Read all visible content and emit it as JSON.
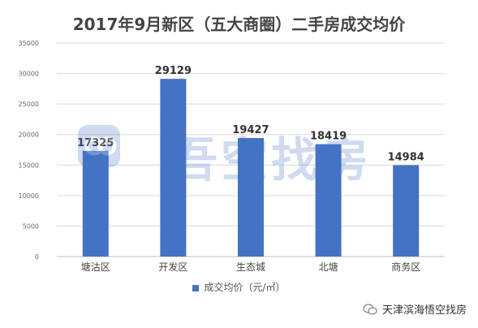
{
  "chart_data": {
    "type": "bar",
    "title": "2017年9月新区（五大商圈）二手房成交均价",
    "categories": [
      "塘沽区",
      "开发区",
      "生态城",
      "北塘",
      "商务区"
    ],
    "series": [
      {
        "name": "成交均价（元/㎡）",
        "values": [
          17325,
          29129,
          19427,
          18419,
          14984
        ]
      }
    ],
    "ylim": [
      0,
      35000
    ],
    "yticks": [
      0,
      5000,
      10000,
      15000,
      20000,
      25000,
      30000,
      35000
    ],
    "grid": true,
    "legend": "bottom",
    "bar_color": "#4472C4"
  },
  "watermark": {
    "text": "吾空找房"
  },
  "source": {
    "text": "天津滨海悟空找房",
    "icon": "wechat-icon"
  }
}
